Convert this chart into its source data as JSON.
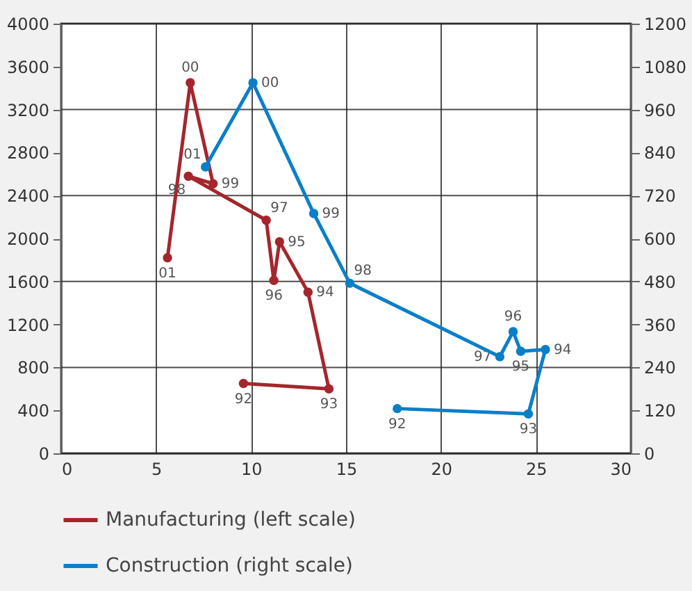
{
  "chart_data": {
    "type": "line",
    "xlim": [
      0,
      30
    ],
    "xticks": [
      0,
      5,
      10,
      15,
      20,
      25,
      30
    ],
    "ylim": [
      0,
      4000
    ],
    "yticks": [
      0,
      400,
      800,
      1200,
      1600,
      2000,
      2400,
      2800,
      3200,
      3600,
      4000
    ],
    "y2lim": [
      0,
      1200
    ],
    "y2ticks": [
      0,
      120,
      240,
      360,
      480,
      600,
      720,
      840,
      960,
      1080,
      1200
    ],
    "grid": true,
    "legend": "bottom",
    "marker": "circle",
    "line_style": "solid",
    "series": [
      {
        "name": "Manufacturing (left scale)",
        "color": "#a4262c",
        "x": [
          9.6,
          14.1,
          13.0,
          11.5,
          11.2,
          10.8,
          6.7,
          8.0,
          6.8,
          5.6
        ],
        "values": [
          650,
          600,
          1500,
          1970,
          1610,
          2170,
          2580,
          2510,
          3450,
          1820
        ]
      },
      {
        "name": "Construction (right scale)",
        "color": "#0a7fc8",
        "axis": "y2",
        "x": [
          17.7,
          24.6,
          25.5,
          24.2,
          23.8,
          23.1,
          15.2,
          13.3,
          10.1,
          7.6
        ],
        "values": [
          125,
          110,
          290,
          285,
          340,
          270,
          475,
          670,
          1035,
          800
        ]
      }
    ],
    "annotations": [
      {
        "text": "92",
        "x": 9.6,
        "y": 650
      },
      {
        "text": "93",
        "x": 14.1,
        "y": 600
      },
      {
        "text": "94",
        "x": 13.0,
        "y": 1500
      },
      {
        "text": "95",
        "x": 11.5,
        "y": 1970
      },
      {
        "text": "96",
        "x": 11.2,
        "y": 1610
      },
      {
        "text": "97",
        "x": 10.8,
        "y": 2170
      },
      {
        "text": "98",
        "x": 6.7,
        "y": 2580
      },
      {
        "text": "99",
        "x": 8.0,
        "y": 2510
      },
      {
        "text": "00",
        "x": 6.8,
        "y": 3450
      },
      {
        "text": "01",
        "x": 5.6,
        "y": 1820
      },
      {
        "text": "92",
        "x": 17.7,
        "y": 417
      },
      {
        "text": "93",
        "x": 24.6,
        "y": 367
      },
      {
        "text": "94",
        "x": 25.5,
        "y": 967
      },
      {
        "text": "95",
        "x": 24.2,
        "y": 950
      },
      {
        "text": "96",
        "x": 23.8,
        "y": 1133
      },
      {
        "text": "97",
        "x": 23.1,
        "y": 900
      },
      {
        "text": "98",
        "x": 15.2,
        "y": 1583
      },
      {
        "text": "99",
        "x": 13.3,
        "y": 2233
      },
      {
        "text": "00",
        "x": 10.1,
        "y": 3450
      },
      {
        "text": "01",
        "x": 7.6,
        "y": 2667
      }
    ]
  }
}
